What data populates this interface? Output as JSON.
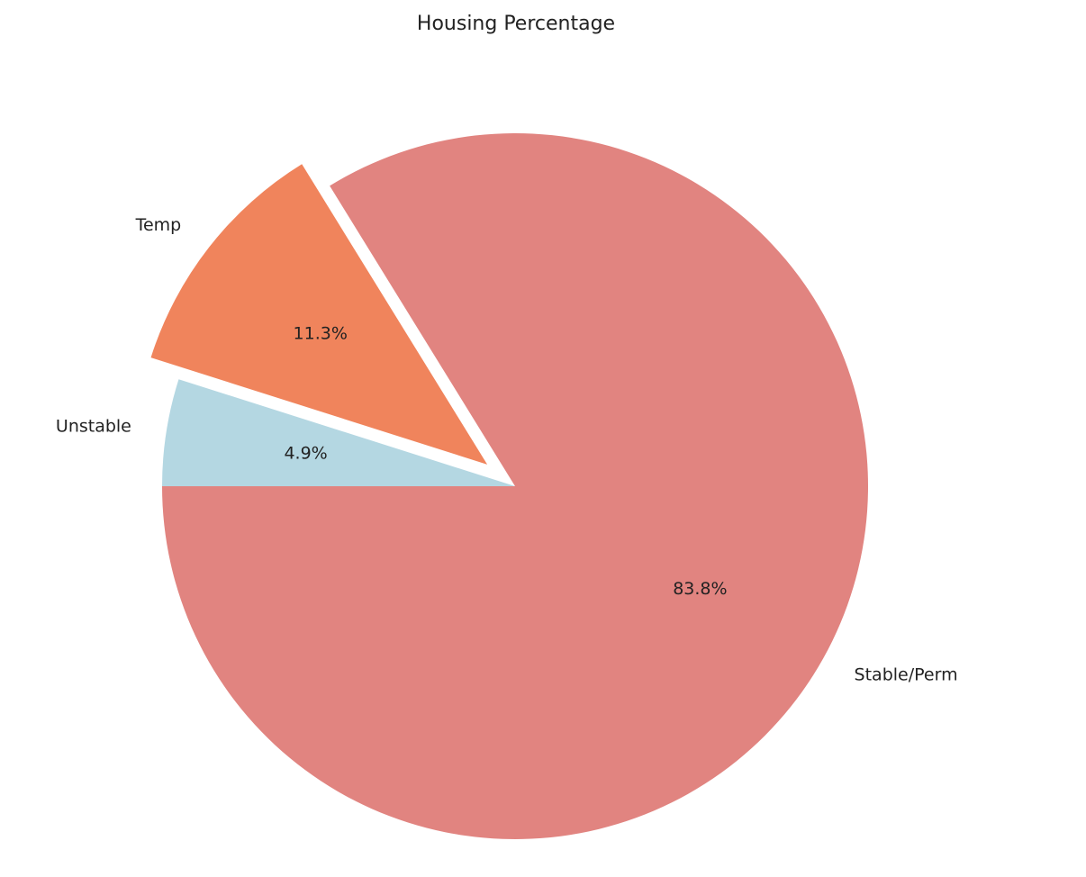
{
  "chart_data": {
    "type": "pie",
    "title": "Housing Percentage",
    "slices": [
      {
        "label": "Stable/Perm",
        "value": 83.8,
        "pct_label": "83.8%",
        "color": "#e18480",
        "explode": 0
      },
      {
        "label": "Temp",
        "value": 11.3,
        "pct_label": "11.3%",
        "color": "#f0845c",
        "explode": 0.1
      },
      {
        "label": "Unstable",
        "value": 4.9,
        "pct_label": "4.9%",
        "color": "#b4d7e2",
        "explode": 0
      }
    ]
  }
}
